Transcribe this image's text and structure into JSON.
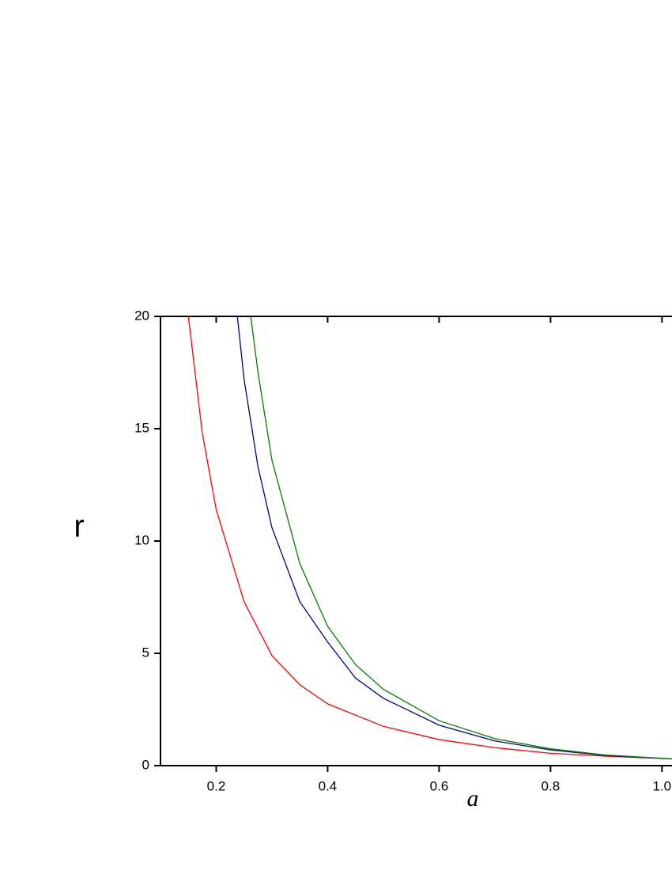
{
  "chart_data": {
    "type": "line",
    "x_label": "a",
    "y_label": "r",
    "xlim": [
      0.1,
      1.018
    ],
    "ylim": [
      0,
      20
    ],
    "xticks": [
      0.2,
      0.4,
      0.6,
      0.8,
      {
        "value": 1,
        "label": "1.0"
      }
    ],
    "yticks": [
      0,
      5,
      10,
      15,
      20
    ],
    "series": [
      {
        "color": "#ff0000",
        "x": [
          0.15,
          0.175,
          0.2,
          0.25,
          0.3,
          0.35,
          0.4,
          0.5,
          0.6,
          0.7,
          0.8,
          0.9,
          1.0,
          1.018
        ],
        "values": [
          20,
          14.8,
          11.4,
          7.3,
          4.9,
          3.6,
          2.75,
          1.75,
          1.16,
          0.8,
          0.55,
          0.42,
          0.32,
          0.3
        ]
      },
      {
        "color": "#00008b",
        "x": [
          0.238,
          0.25,
          0.275,
          0.3,
          0.35,
          0.4,
          0.45,
          0.5,
          0.6,
          0.7,
          0.8,
          0.9,
          1.0,
          1.018
        ],
        "values": [
          20,
          17.2,
          13.3,
          10.6,
          7.3,
          5.5,
          3.9,
          3.0,
          1.8,
          1.1,
          0.7,
          0.45,
          0.32,
          0.3
        ]
      },
      {
        "color": "#008000",
        "x": [
          0.262,
          0.275,
          0.3,
          0.35,
          0.4,
          0.45,
          0.5,
          0.6,
          0.7,
          0.8,
          0.9,
          1.0,
          1.018
        ],
        "values": [
          20,
          17.5,
          13.6,
          9.0,
          6.2,
          4.5,
          3.4,
          2.0,
          1.2,
          0.75,
          0.47,
          0.33,
          0.3
        ]
      }
    ]
  }
}
